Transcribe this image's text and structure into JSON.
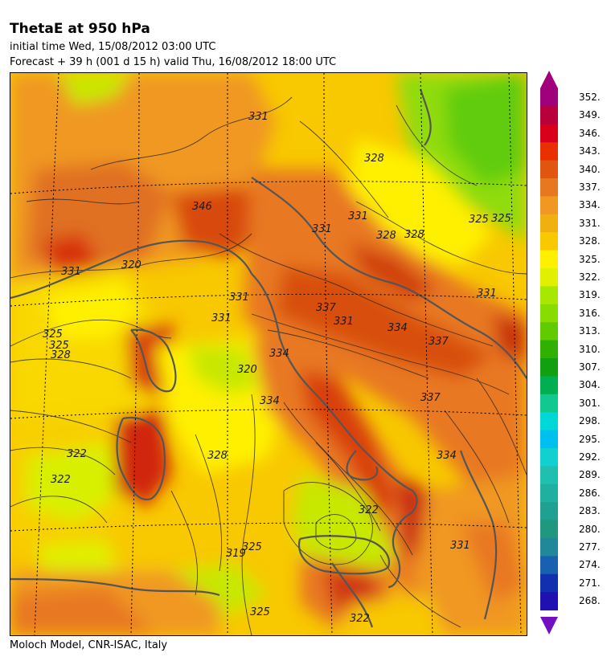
{
  "header": {
    "title": "ThetaE at 950 hPa",
    "initial_time": "initial time  Wed, 15/08/2012  03:00 UTC",
    "forecast": "Forecast  +  39 h  (001 d 15 h)  valid Thu, 16/08/2012 18:00 UTC"
  },
  "footer": {
    "credit": "Moloch Model, CNR-ISAC, Italy"
  },
  "legend": {
    "levels": [
      "352.",
      "349.",
      "346.",
      "343.",
      "340.",
      "337.",
      "334.",
      "331.",
      "328.",
      "325.",
      "322.",
      "319.",
      "316.",
      "313.",
      "310.",
      "307.",
      "304.",
      "301.",
      "298.",
      "295.",
      "292.",
      "289.",
      "286.",
      "283.",
      "280.",
      "277.",
      "274.",
      "271.",
      "268."
    ],
    "colors": [
      "#a0007a",
      "#b8003a",
      "#d8001a",
      "#e83000",
      "#e05510",
      "#e87820",
      "#f09820",
      "#f0b010",
      "#f8c800",
      "#fff000",
      "#e0f000",
      "#a8e800",
      "#88dc00",
      "#60cc00",
      "#30b000",
      "#10a010",
      "#00b050",
      "#10c890",
      "#00d8d8",
      "#00c0f0",
      "#10d0d0",
      "#20c0b0",
      "#20b0a0",
      "#20a090",
      "#209880",
      "#208898",
      "#1860b0",
      "#1030b0",
      "#2010b0"
    ],
    "top_arrow_color": "#a0007a",
    "bottom_arrow_color": "#7010c0"
  },
  "map": {
    "contour_labels": [
      "331",
      "328",
      "331",
      "328",
      "325",
      "331",
      "320",
      "331",
      "325",
      "331",
      "331",
      "334",
      "337",
      "325",
      "328",
      "322",
      "322",
      "319",
      "325",
      "325",
      "322",
      "331",
      "334",
      "337",
      "334",
      "331",
      "328",
      "325",
      "337",
      "334",
      "331",
      "346",
      "328",
      "320",
      "322"
    ]
  }
}
